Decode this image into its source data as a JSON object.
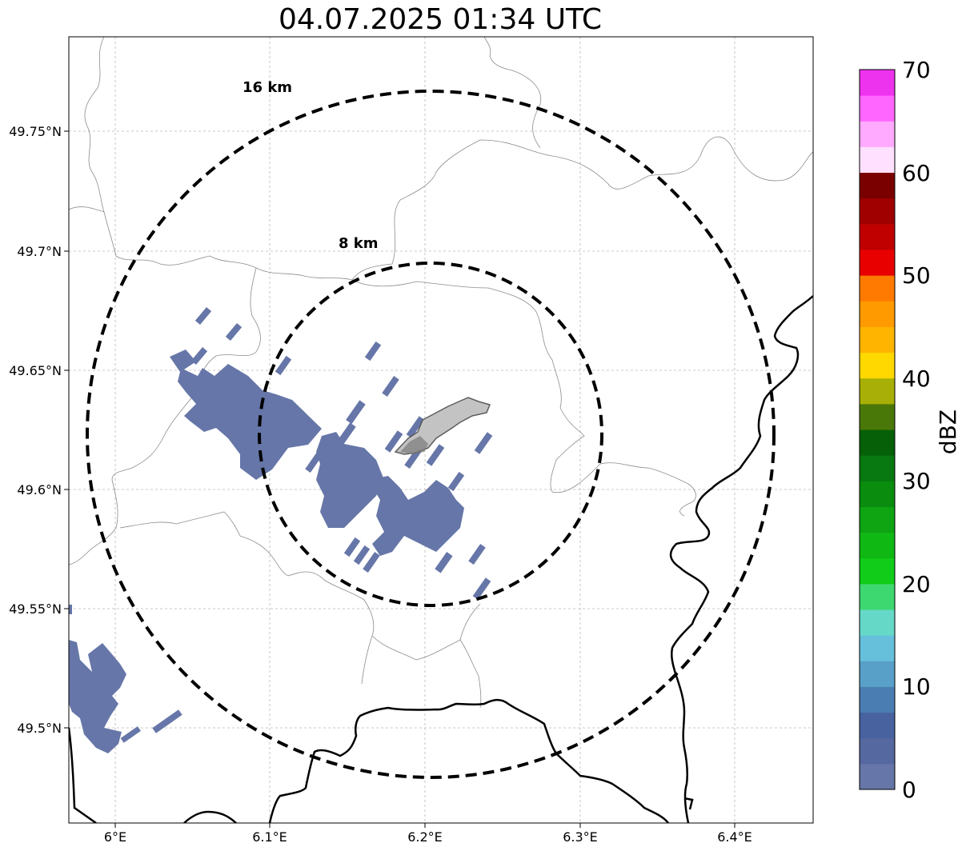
{
  "title": "04.07.2025 01:34 UTC",
  "map": {
    "lat_ticks": [
      "49.75°N",
      "49.7°N",
      "49.65°N",
      "49.6°N",
      "49.55°N",
      "49.5°N"
    ],
    "lon_ticks": [
      "6°E",
      "6.1°E",
      "6.2°E",
      "6.3°E",
      "6.4°E"
    ],
    "rings": [
      {
        "label": "16 km",
        "radius_km": 16
      },
      {
        "label": "8 km",
        "radius_km": 8
      }
    ],
    "echo_color": "#6676a8",
    "target_area_color": "#c0c0c0"
  },
  "colorbar": {
    "label": "dBZ",
    "ticks": [
      "0",
      "10",
      "20",
      "30",
      "40",
      "50",
      "60",
      "70"
    ],
    "colors": [
      "#6676a8",
      "#5668a0",
      "#4862a0",
      "#4a7eb2",
      "#58a0c8",
      "#66c0dc",
      "#66d8c8",
      "#3ed870",
      "#12cc1a",
      "#10b814",
      "#0ea412",
      "#0a8c0e",
      "#087810",
      "#066008",
      "#4a7808",
      "#a8b008",
      "#ffd800",
      "#ffb400",
      "#ff9a00",
      "#ff7a00",
      "#e80000",
      "#c00000",
      "#a00000",
      "#7a0000",
      "#ffe0ff",
      "#ffaaff",
      "#ff66ff",
      "#ee33ee"
    ]
  }
}
